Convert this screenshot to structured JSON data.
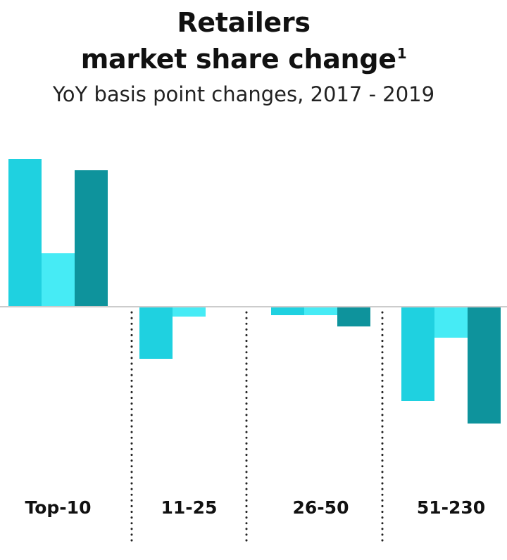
{
  "title": {
    "line1": "Retailers",
    "line2": "market share change",
    "footnote": "1"
  },
  "subtitle": "YoY basis point changes, 2017 - 2019",
  "colors": {
    "series1": "#1fd1e0",
    "series2": "#46ebf5",
    "series3": "#0e939c",
    "baseline": "#cccccc",
    "divider": "#222222"
  },
  "chart_data": {
    "type": "bar",
    "categories": [
      "Top-10",
      "11-25",
      "26-50",
      "51-230"
    ],
    "series": [
      {
        "values": [
          105,
          -37,
          -6,
          -67
        ]
      },
      {
        "values": [
          38,
          -7,
          -6,
          -22
        ]
      },
      {
        "values": [
          97,
          0,
          -14,
          -83
        ]
      }
    ],
    "ylim": [
      -90,
      110
    ],
    "grid": false,
    "legend": "none"
  }
}
